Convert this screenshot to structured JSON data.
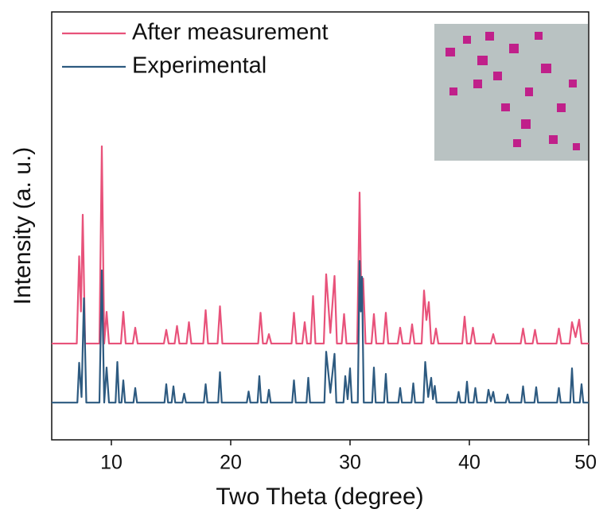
{
  "chart_data": {
    "type": "line",
    "xlabel": "Two Theta (degree)",
    "ylabel": "Intensity (a. u.)",
    "xlim": [
      5,
      50
    ],
    "xticks": [
      10,
      20,
      30,
      40,
      50
    ],
    "ylim": [
      0,
      100
    ],
    "legend": "upper left",
    "series": [
      {
        "name": "After measurement",
        "color": "#e8527a",
        "x": [
          5,
          7.1,
          7.3,
          7.45,
          7.6,
          7.8,
          9.0,
          9.2,
          9.4,
          9.6,
          9.8,
          10.8,
          11,
          11.2,
          11.8,
          12,
          12.2,
          14.4,
          14.6,
          14.8,
          15.3,
          15.5,
          15.7,
          16.3,
          16.5,
          16.7,
          17.7,
          17.9,
          18.1,
          18.9,
          19.1,
          19.3,
          22.3,
          22.5,
          22.7,
          23.0,
          23.2,
          23.4,
          25.1,
          25.3,
          25.5,
          26.0,
          26.2,
          26.4,
          26.7,
          26.9,
          27.1,
          27.8,
          28,
          28.35,
          28.7,
          28.9,
          29.3,
          29.5,
          29.7,
          30.6,
          30.8,
          30.95,
          31.1,
          31.3,
          31.8,
          32,
          32.2,
          32.8,
          33,
          33.2,
          34.0,
          34.2,
          34.4,
          35.0,
          35.2,
          35.4,
          36.0,
          36.2,
          36.4,
          36.6,
          36.8,
          37.0,
          37.2,
          37.4,
          39.4,
          39.6,
          39.8,
          40.1,
          40.3,
          40.5,
          41.8,
          42,
          42.2,
          44.3,
          44.5,
          44.7,
          45.3,
          45.5,
          45.7,
          47.3,
          47.5,
          47.7,
          48.4,
          48.6,
          48.9,
          49.2,
          49.4,
          50
        ],
        "values": [
          22.5,
          22.5,
          42.9,
          30,
          52.6,
          22.5,
          22.5,
          68.6,
          22.5,
          29.9,
          22.5,
          22.5,
          29.9,
          22.5,
          22.5,
          26.2,
          22.5,
          22.5,
          25.7,
          22.5,
          22.5,
          26.6,
          22.5,
          22.5,
          27.5,
          22.5,
          22.5,
          30.3,
          22.5,
          22.5,
          31.2,
          22.5,
          22.5,
          29.7,
          22.5,
          22.5,
          24.7,
          22.5,
          22.5,
          29.7,
          22.5,
          22.5,
          27.5,
          22.5,
          22.5,
          33.6,
          22.5,
          22.5,
          38.7,
          25,
          38.3,
          22.5,
          22.5,
          29.4,
          22.5,
          22.5,
          57.8,
          32,
          37.7,
          22.5,
          22.5,
          29.4,
          22.5,
          22.5,
          29.7,
          22.5,
          22.5,
          26.2,
          22.5,
          22.5,
          27,
          22.5,
          22.5,
          34.9,
          28,
          32.2,
          22.5,
          22.5,
          26,
          22.5,
          22.5,
          28.8,
          22.5,
          22.5,
          26.2,
          22.5,
          22.5,
          24.7,
          22.5,
          22.5,
          26,
          22.5,
          22.5,
          25.7,
          22.5,
          22.5,
          26,
          22.5,
          22.5,
          27.5,
          24,
          28.1,
          22.5,
          22.5
        ]
      },
      {
        "name": "Experimental",
        "color": "#2d5a80",
        "x": [
          5,
          7.15,
          7.3,
          7.5,
          7.7,
          7.9,
          9.0,
          9.2,
          9.4,
          9.6,
          9.8,
          10.35,
          10.5,
          10.65,
          10.85,
          11,
          11.15,
          11.85,
          12,
          12.15,
          14.45,
          14.6,
          14.75,
          15.05,
          15.2,
          15.35,
          15.95,
          16.1,
          16.25,
          17.75,
          17.9,
          18.05,
          18.95,
          19.1,
          19.25,
          21.35,
          21.5,
          21.65,
          22.25,
          22.4,
          22.55,
          23.05,
          23.2,
          23.35,
          25.15,
          25.3,
          25.45,
          26.35,
          26.5,
          26.65,
          27.85,
          28,
          28.35,
          28.7,
          28.85,
          29.45,
          29.6,
          29.8,
          30,
          30.15,
          30.65,
          30.8,
          30.9,
          31,
          31.15,
          31.85,
          32,
          32.15,
          32.85,
          33,
          33.15,
          34.05,
          34.2,
          34.35,
          35.15,
          35.3,
          35.45,
          36.15,
          36.3,
          36.55,
          36.8,
          36.95,
          37.1,
          37.25,
          38.95,
          39.1,
          39.25,
          39.65,
          39.8,
          39.95,
          40.35,
          40.5,
          40.65,
          41.45,
          41.6,
          41.8,
          42,
          42.15,
          43.05,
          43.2,
          43.35,
          44.35,
          44.5,
          44.65,
          45.45,
          45.6,
          45.75,
          47.35,
          47.5,
          47.65,
          48.45,
          48.6,
          48.75,
          49.25,
          49.4,
          49.55,
          50
        ],
        "values": [
          8.7,
          8.7,
          18,
          10,
          33.1,
          8.7,
          8.7,
          39.6,
          8.7,
          16.9,
          8.7,
          8.7,
          18.2,
          8.7,
          8.7,
          13.9,
          8.7,
          8.7,
          12.1,
          8.7,
          8.7,
          13,
          8.7,
          8.7,
          12.5,
          8.7,
          8.7,
          10.8,
          8.7,
          8.7,
          13,
          8.7,
          8.7,
          15.8,
          8.7,
          8.7,
          11.3,
          8.7,
          8.7,
          14.9,
          8.7,
          8.7,
          11.7,
          8.7,
          8.7,
          13.9,
          8.7,
          8.7,
          14.5,
          8.7,
          8.7,
          20.6,
          11,
          20.1,
          8.7,
          8.7,
          14.9,
          9.5,
          16.7,
          8.7,
          8.7,
          41.8,
          30,
          38.1,
          8.7,
          8.7,
          16.9,
          8.7,
          8.7,
          15.4,
          8.7,
          8.7,
          12.1,
          8.7,
          8.7,
          13.2,
          8.7,
          8.7,
          18.2,
          10,
          14.5,
          9.5,
          12.6,
          8.7,
          8.7,
          11.2,
          8.7,
          8.7,
          13.6,
          8.7,
          8.7,
          12.1,
          8.7,
          8.7,
          11.7,
          9,
          11.2,
          8.7,
          8.7,
          10.6,
          8.7,
          8.7,
          12.5,
          8.7,
          8.7,
          12.3,
          8.7,
          8.7,
          12.1,
          8.7,
          8.7,
          16.7,
          8.7,
          8.7,
          13,
          8.7,
          8.7
        ]
      }
    ]
  }
}
